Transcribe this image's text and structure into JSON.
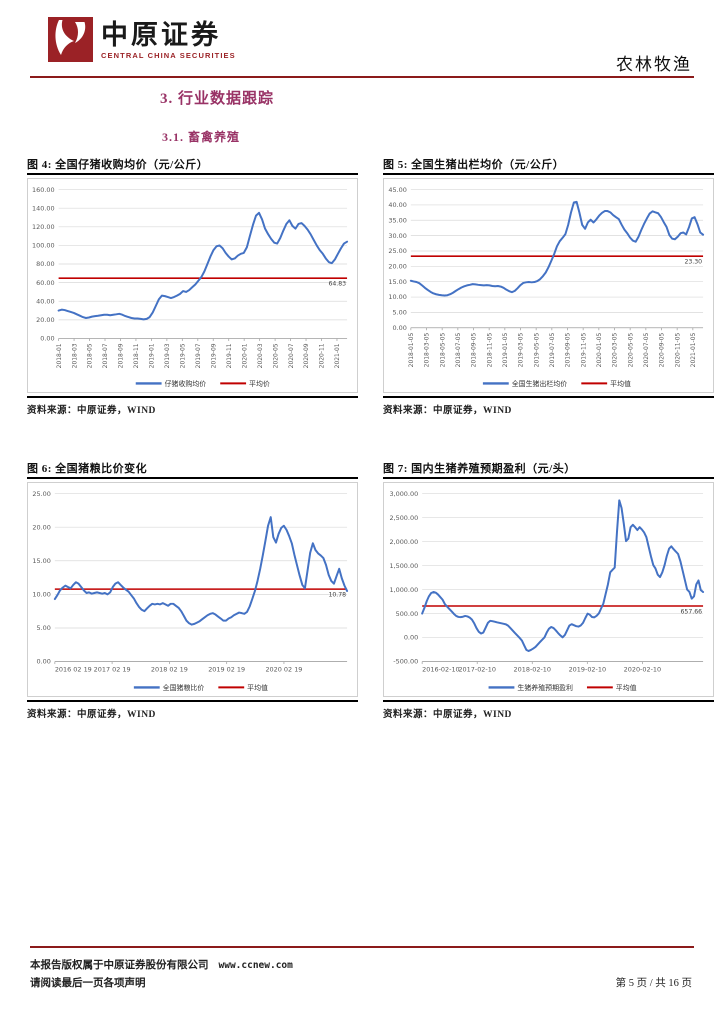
{
  "header": {
    "brand_cn": "中原证券",
    "brand_en": "CENTRAL CHINA SECURITIES",
    "category": "农林牧渔"
  },
  "sections": {
    "h1": "3. 行业数据跟踪",
    "h2": "3.1. 畜禽养殖"
  },
  "source_label": "资料来源：中原证券，WIND",
  "footer": {
    "copyright": "本报告版权属于中原证券股份有限公司",
    "url": "www.ccnew.com",
    "disclaimer": "请阅读最后一页各项声明",
    "page_info": "第 5 页 / 共 16 页"
  },
  "colors": {
    "accent_red": "#8b1a1a",
    "heading_purple": "#993366",
    "series_line": "#4472c4",
    "avg_line": "#c00000",
    "grid": "#d9d9d9",
    "axis": "#a6a6a6",
    "tick_text": "#595959"
  },
  "chart_data": [
    {
      "type": "line",
      "title": "图 4: 全国仔猪收购均价（元/公斤）",
      "legend": [
        "仔猪收购均价",
        "平均价"
      ],
      "ylim": [
        0,
        160
      ],
      "yticks": [
        0,
        20,
        40,
        60,
        80,
        100,
        120,
        140,
        160
      ],
      "avg": 64.83,
      "avg_label": "64.83",
      "xlabel_rotate": true,
      "xtick_end_frac": 0.965,
      "xlabels": [
        "2018-01",
        "2018-03",
        "2018-05",
        "2018-07",
        "2018-09",
        "2018-11",
        "2019-01",
        "2019-03",
        "2019-05",
        "2019-07",
        "2019-09",
        "2019-11",
        "2020-01",
        "2020-03",
        "2020-05",
        "2020-07",
        "2020-09",
        "2020-11",
        "2021-01"
      ],
      "values": [
        30,
        31,
        30.5,
        29.5,
        28.5,
        27.5,
        26,
        24.5,
        23,
        22,
        22.5,
        23.5,
        24,
        24.5,
        25,
        25.5,
        25.5,
        25,
        25.5,
        26,
        26.5,
        25.5,
        24,
        23,
        22,
        21.5,
        21.5,
        21,
        20.5,
        21,
        23,
        28,
        35,
        42,
        46,
        45.5,
        44.5,
        43.5,
        44.5,
        46,
        48,
        51,
        50,
        52,
        55,
        58,
        62,
        66,
        72,
        80,
        88,
        95,
        99,
        100,
        97,
        92,
        88,
        85,
        86,
        89,
        91,
        92,
        98,
        110,
        122,
        132,
        135,
        128,
        118,
        112,
        107,
        103,
        102,
        108,
        116,
        123,
        127,
        121,
        118,
        123,
        124,
        121,
        117,
        112,
        106,
        100,
        95,
        91,
        86,
        82,
        81,
        85,
        91,
        97,
        102,
        104
      ]
    },
    {
      "type": "line",
      "title": "图 5: 全国生猪出栏均价（元/公斤）",
      "legend": [
        "全国生猪出栏均价",
        "平均值"
      ],
      "ylim": [
        0,
        45
      ],
      "yticks": [
        0,
        5,
        10,
        15,
        20,
        25,
        30,
        35,
        40,
        45
      ],
      "avg": 23.3,
      "avg_label": "23.30",
      "xlabel_rotate": true,
      "xtick_end_frac": 0.965,
      "xlabels": [
        "2018-01-05",
        "2018-03-05",
        "2018-05-05",
        "2018-07-05",
        "2018-09-05",
        "2018-11-05",
        "2019-01-05",
        "2019-03-05",
        "2019-05-05",
        "2019-07-05",
        "2019-09-05",
        "2019-11-05",
        "2020-01-05",
        "2020-03-05",
        "2020-05-05",
        "2020-07-05",
        "2020-09-05",
        "2020-11-05",
        "2021-01-05"
      ],
      "values": [
        15.3,
        15.1,
        14.9,
        14.5,
        13.8,
        13,
        12.3,
        11.7,
        11.2,
        10.9,
        10.7,
        10.6,
        10.5,
        10.6,
        10.9,
        11.4,
        12,
        12.6,
        13.1,
        13.5,
        13.8,
        14,
        14.2,
        14.1,
        14,
        13.9,
        13.8,
        13.9,
        13.8,
        13.6,
        13.5,
        13.6,
        13.4,
        13,
        12.4,
        11.9,
        11.6,
        12,
        12.9,
        13.9,
        14.6,
        14.8,
        14.9,
        14.8,
        14.9,
        15.2,
        15.8,
        16.8,
        18,
        19.7,
        21.8,
        24,
        26.5,
        28.2,
        29.3,
        30.5,
        33.5,
        37.5,
        40.8,
        41,
        37.5,
        33.5,
        32.2,
        34.3,
        35.2,
        34.3,
        35.3,
        36.5,
        37.4,
        38,
        38,
        37.6,
        36.7,
        36,
        35.4,
        33.6,
        32,
        30.8,
        29.4,
        28.4,
        28,
        29.6,
        31.8,
        33.8,
        35.6,
        37.2,
        37.9,
        37.6,
        37.3,
        36.1,
        34.4,
        32.8,
        30.2,
        29,
        28.8,
        29.7,
        30.8,
        31,
        30.4,
        32.8,
        35.6,
        36,
        33.8,
        31,
        30.3
      ]
    },
    {
      "type": "line",
      "title": "图 6: 全国猪粮比价变化",
      "legend": [
        "全国猪粮比价",
        "平均值"
      ],
      "ylim": [
        0,
        25
      ],
      "yticks": [
        0,
        5,
        10,
        15,
        20,
        25
      ],
      "avg": 10.78,
      "avg_label": "10.78",
      "xlabel_rotate": false,
      "xtick_step_frac": 0.196,
      "xlabels": [
        "2016 02 19",
        "2017 02 19",
        "2018 02 19",
        "2019 02 19",
        "2020 02 19"
      ],
      "values": [
        9.3,
        9.9,
        10.6,
        11,
        11.3,
        11.1,
        10.9,
        11.4,
        11.8,
        11.6,
        11.1,
        10.6,
        10.2,
        10.3,
        10.1,
        10.2,
        10.3,
        10.2,
        10.1,
        10.2,
        10,
        10.3,
        11.1,
        11.6,
        11.8,
        11.4,
        11,
        10.7,
        10.4,
        9.9,
        9.4,
        8.7,
        8.1,
        7.7,
        7.5,
        7.9,
        8.3,
        8.6,
        8.5,
        8.6,
        8.5,
        8.7,
        8.5,
        8.3,
        8.6,
        8.6,
        8.3,
        8,
        7.5,
        6.8,
        6.1,
        5.7,
        5.5,
        5.6,
        5.8,
        6,
        6.3,
        6.6,
        6.9,
        7.1,
        7.2,
        7,
        6.7,
        6.4,
        6.1,
        6.1,
        6.4,
        6.6,
        6.9,
        7.1,
        7.3,
        7.2,
        7.1,
        7.4,
        8.2,
        9.3,
        10.5,
        12,
        13.8,
        15.8,
        18,
        20.2,
        21.5,
        18.5,
        17.7,
        19,
        19.9,
        20.2,
        19.6,
        18.7,
        17.6,
        15.9,
        14.3,
        12.8,
        11.4,
        10.9,
        13.6,
        16.2,
        17.6,
        16.6,
        16.1,
        15.8,
        15.4,
        14.4,
        12.9,
        12,
        11.6,
        12.7,
        13.8,
        12.4,
        11.3,
        10.5
      ]
    },
    {
      "type": "line",
      "title": "图 7: 国内生猪养殖预期盈利（元/头）",
      "legend": [
        "生猪养殖预期盈利",
        "平均值"
      ],
      "ylim": [
        -500,
        3000
      ],
      "yticks": [
        -500,
        0,
        500,
        1000,
        1500,
        2000,
        2500,
        3000
      ],
      "avg": 657.66,
      "avg_label": "657.66",
      "xlabel_rotate": false,
      "xtick_step_frac": 0.196,
      "xlabels": [
        "2016-02-10",
        "2017-02-10",
        "2018-02-10",
        "2019-02-10",
        "2020-02-10"
      ],
      "values": [
        500,
        620,
        760,
        860,
        930,
        950,
        935,
        895,
        845,
        790,
        700,
        645,
        595,
        545,
        495,
        450,
        430,
        425,
        435,
        450,
        440,
        415,
        375,
        295,
        195,
        120,
        85,
        105,
        205,
        305,
        350,
        340,
        330,
        318,
        308,
        298,
        288,
        275,
        245,
        195,
        145,
        95,
        45,
        -5,
        -60,
        -160,
        -255,
        -280,
        -258,
        -228,
        -195,
        -145,
        -95,
        -45,
        5,
        105,
        185,
        220,
        198,
        148,
        95,
        45,
        5,
        55,
        155,
        250,
        278,
        258,
        238,
        228,
        252,
        305,
        405,
        498,
        478,
        428,
        422,
        452,
        505,
        605,
        710,
        910,
        1110,
        1360,
        1410,
        1460,
        2200,
        2860,
        2700,
        2380,
        2010,
        2060,
        2300,
        2350,
        2300,
        2240,
        2300,
        2250,
        2190,
        2090,
        1890,
        1690,
        1510,
        1440,
        1310,
        1260,
        1360,
        1510,
        1700,
        1850,
        1900,
        1840,
        1790,
        1740,
        1590,
        1390,
        1190,
        1000,
        950,
        810,
        860,
        1110,
        1190,
        990,
        950
      ]
    }
  ]
}
